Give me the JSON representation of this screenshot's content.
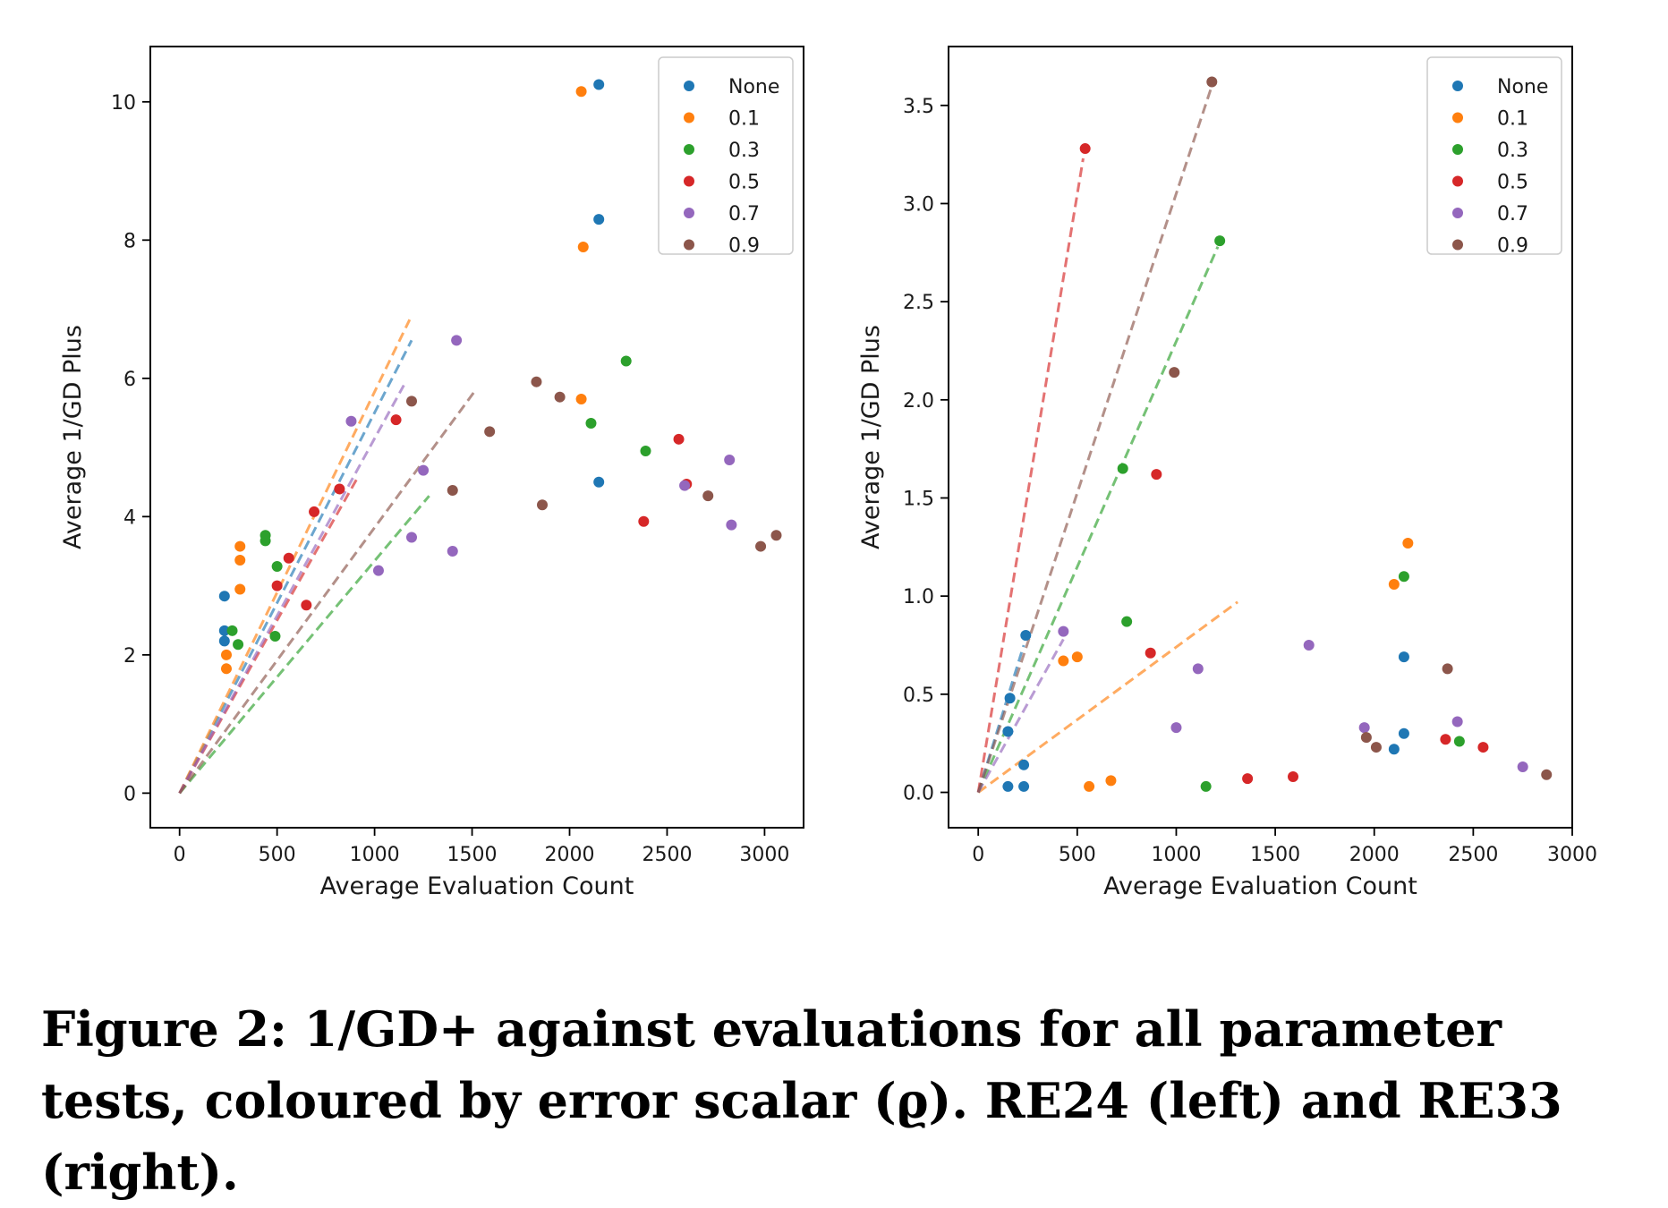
{
  "caption": "Figure 2: 1/GD+ against evaluations for all parameter tests, coloured by error scalar (ϱ). RE24 (left) and RE33 (right).",
  "chart_data": [
    {
      "type": "scatter",
      "title": "",
      "xlabel": "Average Evaluation Count",
      "ylabel": "Average 1/GD Plus",
      "xlim": [
        -150,
        3200
      ],
      "ylim": [
        -0.5,
        10.8
      ],
      "xticks": [
        0,
        500,
        1000,
        1500,
        2000,
        2500,
        3000
      ],
      "xtick_labels": [
        "0",
        "500",
        "1000",
        "1500",
        "2000",
        "2500",
        "3000"
      ],
      "yticks": [
        0,
        2,
        4,
        6,
        8,
        10
      ],
      "ytick_labels": [
        "0",
        "2",
        "4",
        "6",
        "8",
        "10"
      ],
      "grid": false,
      "legend_position": "top-right",
      "series": [
        {
          "name": "None",
          "color": "#1f77b4",
          "points": [
            [
              2150,
              10.25
            ],
            [
              2150,
              8.3
            ],
            [
              2150,
              4.5
            ],
            [
              230,
              2.85
            ],
            [
              230,
              2.35
            ],
            [
              230,
              2.2
            ]
          ],
          "trend_end": [
            1190,
            6.55
          ]
        },
        {
          "name": "0.1",
          "color": "#ff7f0e",
          "points": [
            [
              2060,
              10.15
            ],
            [
              2070,
              7.9
            ],
            [
              2060,
              5.7
            ],
            [
              310,
              3.57
            ],
            [
              310,
              3.37
            ],
            [
              310,
              2.95
            ],
            [
              240,
              2.0
            ],
            [
              240,
              1.8
            ]
          ],
          "trend_end": [
            1180,
            6.85
          ]
        },
        {
          "name": "0.3",
          "color": "#2ca02c",
          "points": [
            [
              2290,
              6.25
            ],
            [
              2110,
              5.35
            ],
            [
              2390,
              4.95
            ],
            [
              440,
              3.73
            ],
            [
              440,
              3.65
            ],
            [
              500,
              3.28
            ],
            [
              270,
              2.35
            ],
            [
              300,
              2.15
            ],
            [
              490,
              2.27
            ]
          ],
          "trend_end": [
            1280,
            4.3
          ]
        },
        {
          "name": "0.5",
          "color": "#d62728",
          "points": [
            [
              1110,
              5.4
            ],
            [
              2560,
              5.12
            ],
            [
              820,
              4.4
            ],
            [
              690,
              4.07
            ],
            [
              560,
              3.4
            ],
            [
              500,
              3.0
            ],
            [
              2380,
              3.93
            ],
            [
              650,
              2.72
            ],
            [
              2600,
              4.47
            ]
          ],
          "trend_end": [
            910,
            4.55
          ]
        },
        {
          "name": "0.7",
          "color": "#9467bd",
          "points": [
            [
              1420,
              6.55
            ],
            [
              880,
              5.38
            ],
            [
              1250,
              4.67
            ],
            [
              2820,
              4.82
            ],
            [
              2590,
              4.45
            ],
            [
              2830,
              3.88
            ],
            [
              1190,
              3.7
            ],
            [
              1400,
              3.5
            ],
            [
              1020,
              3.22
            ]
          ],
          "trend_end": [
            1150,
            5.9
          ]
        },
        {
          "name": "0.9",
          "color": "#8c564b",
          "points": [
            [
              1830,
              5.95
            ],
            [
              1950,
              5.73
            ],
            [
              1190,
              5.67
            ],
            [
              1590,
              5.23
            ],
            [
              1400,
              4.38
            ],
            [
              1860,
              4.17
            ],
            [
              2710,
              4.3
            ],
            [
              2980,
              3.57
            ],
            [
              3060,
              3.73
            ]
          ],
          "trend_end": [
            1510,
            5.8
          ]
        }
      ]
    },
    {
      "type": "scatter",
      "title": "",
      "xlabel": "Average Evaluation Count",
      "ylabel": "Average 1/GD Plus",
      "xlim": [
        -150,
        3000
      ],
      "ylim": [
        -0.18,
        3.8
      ],
      "xticks": [
        0,
        500,
        1000,
        1500,
        2000,
        2500,
        3000
      ],
      "xtick_labels": [
        "0",
        "500",
        "1000",
        "1500",
        "2000",
        "2500",
        "3000"
      ],
      "yticks": [
        0,
        0.5,
        1.0,
        1.5,
        2.0,
        2.5,
        3.0,
        3.5
      ],
      "ytick_labels": [
        "0.0",
        "0.5",
        "1.0",
        "1.5",
        "2.0",
        "2.5",
        "3.0",
        "3.5"
      ],
      "grid": false,
      "legend_position": "top-right",
      "series": [
        {
          "name": "None",
          "color": "#1f77b4",
          "points": [
            [
              240,
              0.8
            ],
            [
              160,
              0.48
            ],
            [
              150,
              0.31
            ],
            [
              230,
              0.14
            ],
            [
              150,
              0.03
            ],
            [
              230,
              0.03
            ],
            [
              2150,
              0.69
            ],
            [
              2150,
              0.3
            ],
            [
              2100,
              0.22
            ]
          ],
          "trend_end": [
            230,
            0.75
          ]
        },
        {
          "name": "0.1",
          "color": "#ff7f0e",
          "points": [
            [
              2170,
              1.27
            ],
            [
              2100,
              1.06
            ],
            [
              430,
              0.67
            ],
            [
              500,
              0.69
            ],
            [
              560,
              0.03
            ],
            [
              670,
              0.06
            ]
          ],
          "trend_end": [
            1310,
            0.97
          ]
        },
        {
          "name": "0.3",
          "color": "#2ca02c",
          "points": [
            [
              1220,
              2.81
            ],
            [
              730,
              1.65
            ],
            [
              750,
              0.87
            ],
            [
              2150,
              1.1
            ],
            [
              2430,
              0.26
            ],
            [
              1150,
              0.03
            ]
          ],
          "trend_end": [
            1210,
            2.78
          ]
        },
        {
          "name": "0.5",
          "color": "#d62728",
          "points": [
            [
              540,
              3.28
            ],
            [
              900,
              1.62
            ],
            [
              870,
              0.71
            ],
            [
              1360,
              0.07
            ],
            [
              1590,
              0.08
            ],
            [
              2360,
              0.27
            ],
            [
              2550,
              0.23
            ]
          ],
          "trend_end": [
            530,
            3.23
          ]
        },
        {
          "name": "0.7",
          "color": "#9467bd",
          "points": [
            [
              430,
              0.82
            ],
            [
              1670,
              0.75
            ],
            [
              1110,
              0.63
            ],
            [
              1000,
              0.33
            ],
            [
              1950,
              0.33
            ],
            [
              2420,
              0.36
            ],
            [
              2750,
              0.13
            ]
          ],
          "trend_end": [
            430,
            0.78
          ]
        },
        {
          "name": "0.9",
          "color": "#8c564b",
          "points": [
            [
              1180,
              3.62
            ],
            [
              990,
              2.14
            ],
            [
              2370,
              0.63
            ],
            [
              1960,
              0.28
            ],
            [
              2010,
              0.23
            ],
            [
              2870,
              0.09
            ]
          ],
          "trend_end": [
            1180,
            3.6
          ]
        }
      ]
    }
  ]
}
